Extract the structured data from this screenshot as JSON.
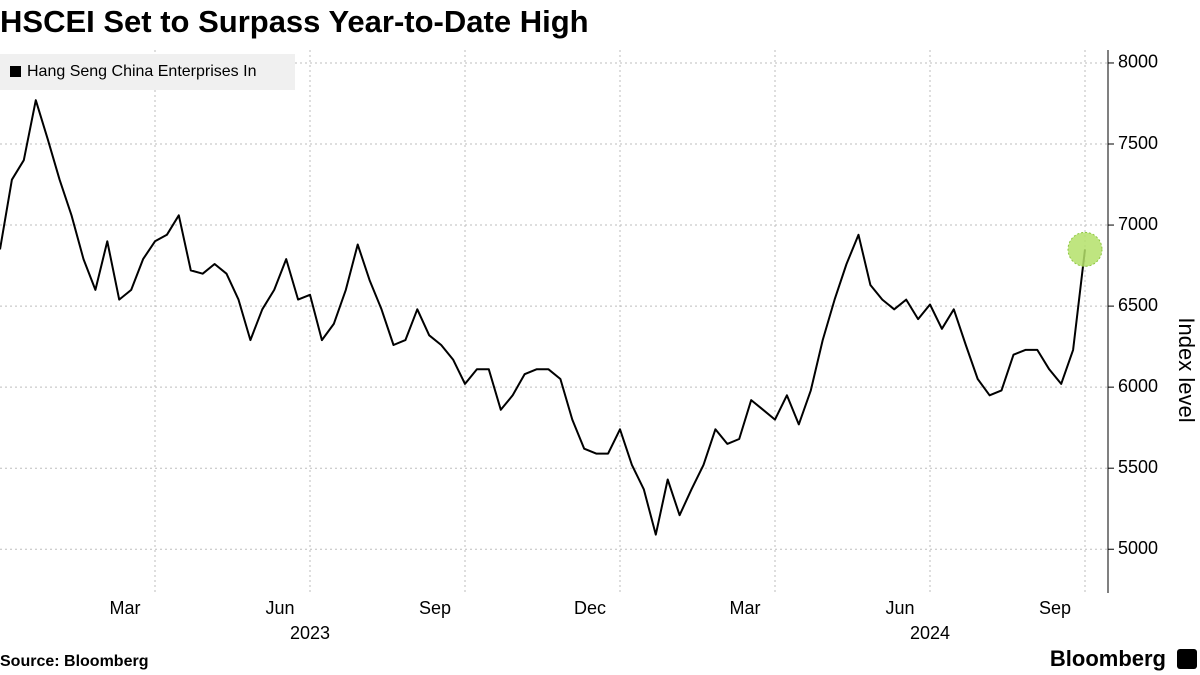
{
  "chart_data": {
    "type": "line",
    "title": "HSCEI Set to Surpass Year-to-Date High",
    "source": "Source: Bloomberg",
    "brand": "Bloomberg",
    "y_axis_label": "Index level",
    "legend_position": "top-left",
    "grid": true,
    "highlight_last": true,
    "highlight_color": "#b4e06a",
    "ylim": [
      4730,
      8080
    ],
    "yticks": [
      5000,
      5500,
      6000,
      6500,
      7000,
      7500,
      8000
    ],
    "categories": [
      null,
      null,
      null,
      null,
      null,
      null,
      null,
      null,
      null,
      null,
      null,
      null,
      null,
      "Mar",
      null,
      null,
      null,
      null,
      null,
      null,
      null,
      null,
      null,
      null,
      null,
      null,
      "Jun",
      null,
      null,
      null,
      null,
      null,
      null,
      null,
      null,
      null,
      null,
      null,
      null,
      "Sep",
      null,
      null,
      null,
      null,
      null,
      null,
      null,
      null,
      null,
      null,
      null,
      null,
      "Dec",
      null,
      null,
      null,
      null,
      null,
      null,
      null,
      null,
      null,
      null,
      null,
      null,
      "Mar",
      null,
      null,
      null,
      null,
      null,
      null,
      null,
      null,
      null,
      null,
      null,
      null,
      "Jun",
      null,
      null,
      null,
      null,
      null,
      null,
      null,
      null,
      null,
      null,
      null,
      null,
      "Sep"
    ],
    "years": [
      null,
      null,
      null,
      null,
      null,
      null,
      null,
      null,
      null,
      null,
      null,
      null,
      null,
      null,
      null,
      null,
      null,
      null,
      null,
      null,
      null,
      null,
      null,
      null,
      null,
      null,
      "2023",
      null,
      null,
      null,
      null,
      null,
      null,
      null,
      null,
      null,
      null,
      null,
      null,
      null,
      null,
      null,
      null,
      null,
      null,
      null,
      null,
      null,
      null,
      null,
      null,
      null,
      null,
      null,
      null,
      null,
      null,
      null,
      null,
      null,
      null,
      null,
      null,
      null,
      null,
      null,
      null,
      null,
      null,
      null,
      null,
      null,
      null,
      null,
      null,
      null,
      null,
      null,
      "2024",
      null,
      null,
      null,
      null,
      null,
      null,
      null,
      null,
      null,
      null,
      null,
      null,
      null
    ],
    "series": [
      {
        "name": "Hang Seng China Enterprises In",
        "color": "#000000",
        "values": [
          6850,
          7280,
          7400,
          7770,
          7530,
          7280,
          7060,
          6790,
          6600,
          6900,
          6540,
          6600,
          6790,
          6900,
          6940,
          7060,
          6720,
          6700,
          6760,
          6700,
          6540,
          6290,
          6480,
          6600,
          6790,
          6540,
          6570,
          6290,
          6390,
          6600,
          6880,
          6660,
          6480,
          6260,
          6290,
          6480,
          6320,
          6260,
          6170,
          6020,
          6110,
          6110,
          5860,
          5950,
          6080,
          6110,
          6110,
          6050,
          5800,
          5620,
          5590,
          5590,
          5740,
          5520,
          5370,
          5090,
          5430,
          5210,
          5370,
          5520,
          5740,
          5650,
          5680,
          5920,
          5860,
          5800,
          5950,
          5770,
          5980,
          6290,
          6540,
          6760,
          6940,
          6630,
          6540,
          6480,
          6540,
          6420,
          6510,
          6360,
          6480,
          6260,
          6050,
          5950,
          5980,
          6200,
          6230,
          6230,
          6110,
          6020,
          6230,
          6850
        ]
      }
    ]
  }
}
